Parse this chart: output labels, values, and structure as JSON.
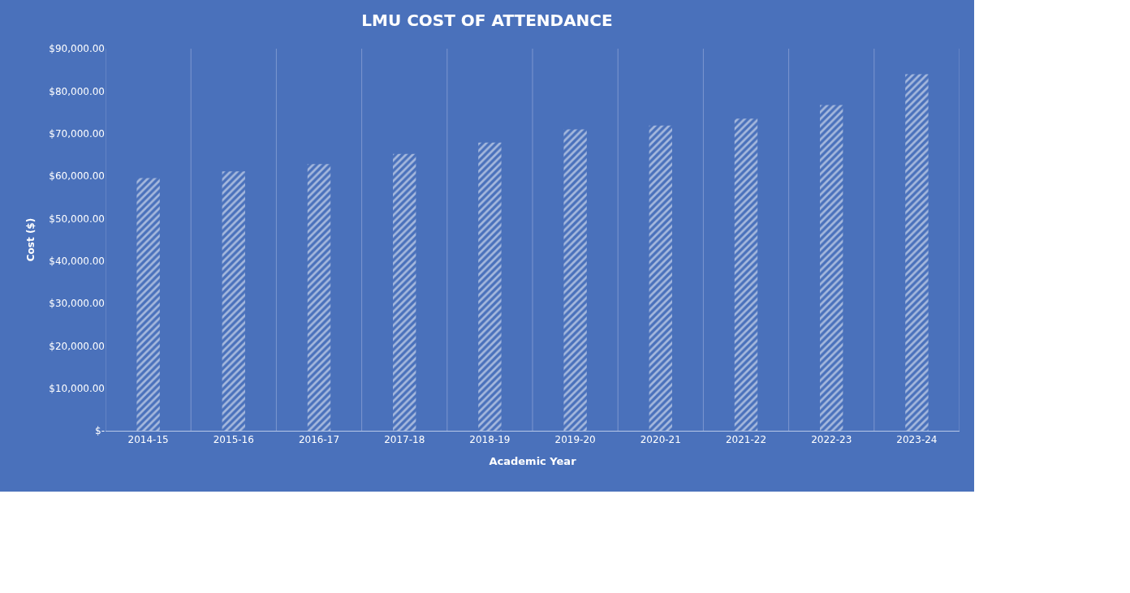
{
  "chart_data": {
    "type": "bar",
    "title": "LMU COST OF ATTENDANCE",
    "xlabel": "Academic Year",
    "ylabel": "Cost ($)",
    "categories": [
      "2014-15",
      "2015-16",
      "2016-17",
      "2017-18",
      "2018-19",
      "2019-20",
      "2020-21",
      "2021-22",
      "2022-23",
      "2023-24"
    ],
    "values": [
      59500,
      61100,
      62800,
      65200,
      67900,
      71000,
      71900,
      73500,
      76700,
      84000
    ],
    "color": "#ffffff",
    "ylim": [
      0,
      90000
    ],
    "yticks": [
      {
        "value": 0,
        "label": "$-"
      },
      {
        "value": 10000,
        "label": "$10,000.00"
      },
      {
        "value": 20000,
        "label": "$20,000.00"
      },
      {
        "value": 30000,
        "label": "$30,000.00"
      },
      {
        "value": 40000,
        "label": "$40,000.00"
      },
      {
        "value": 50000,
        "label": "$50,000.00"
      },
      {
        "value": 60000,
        "label": "$60,000.00"
      },
      {
        "value": 70000,
        "label": "$70,000.00"
      },
      {
        "value": 80000,
        "label": "$80,000.00"
      },
      {
        "value": 90000,
        "label": "$90,000.00"
      }
    ],
    "grid": "x",
    "legend": false
  }
}
